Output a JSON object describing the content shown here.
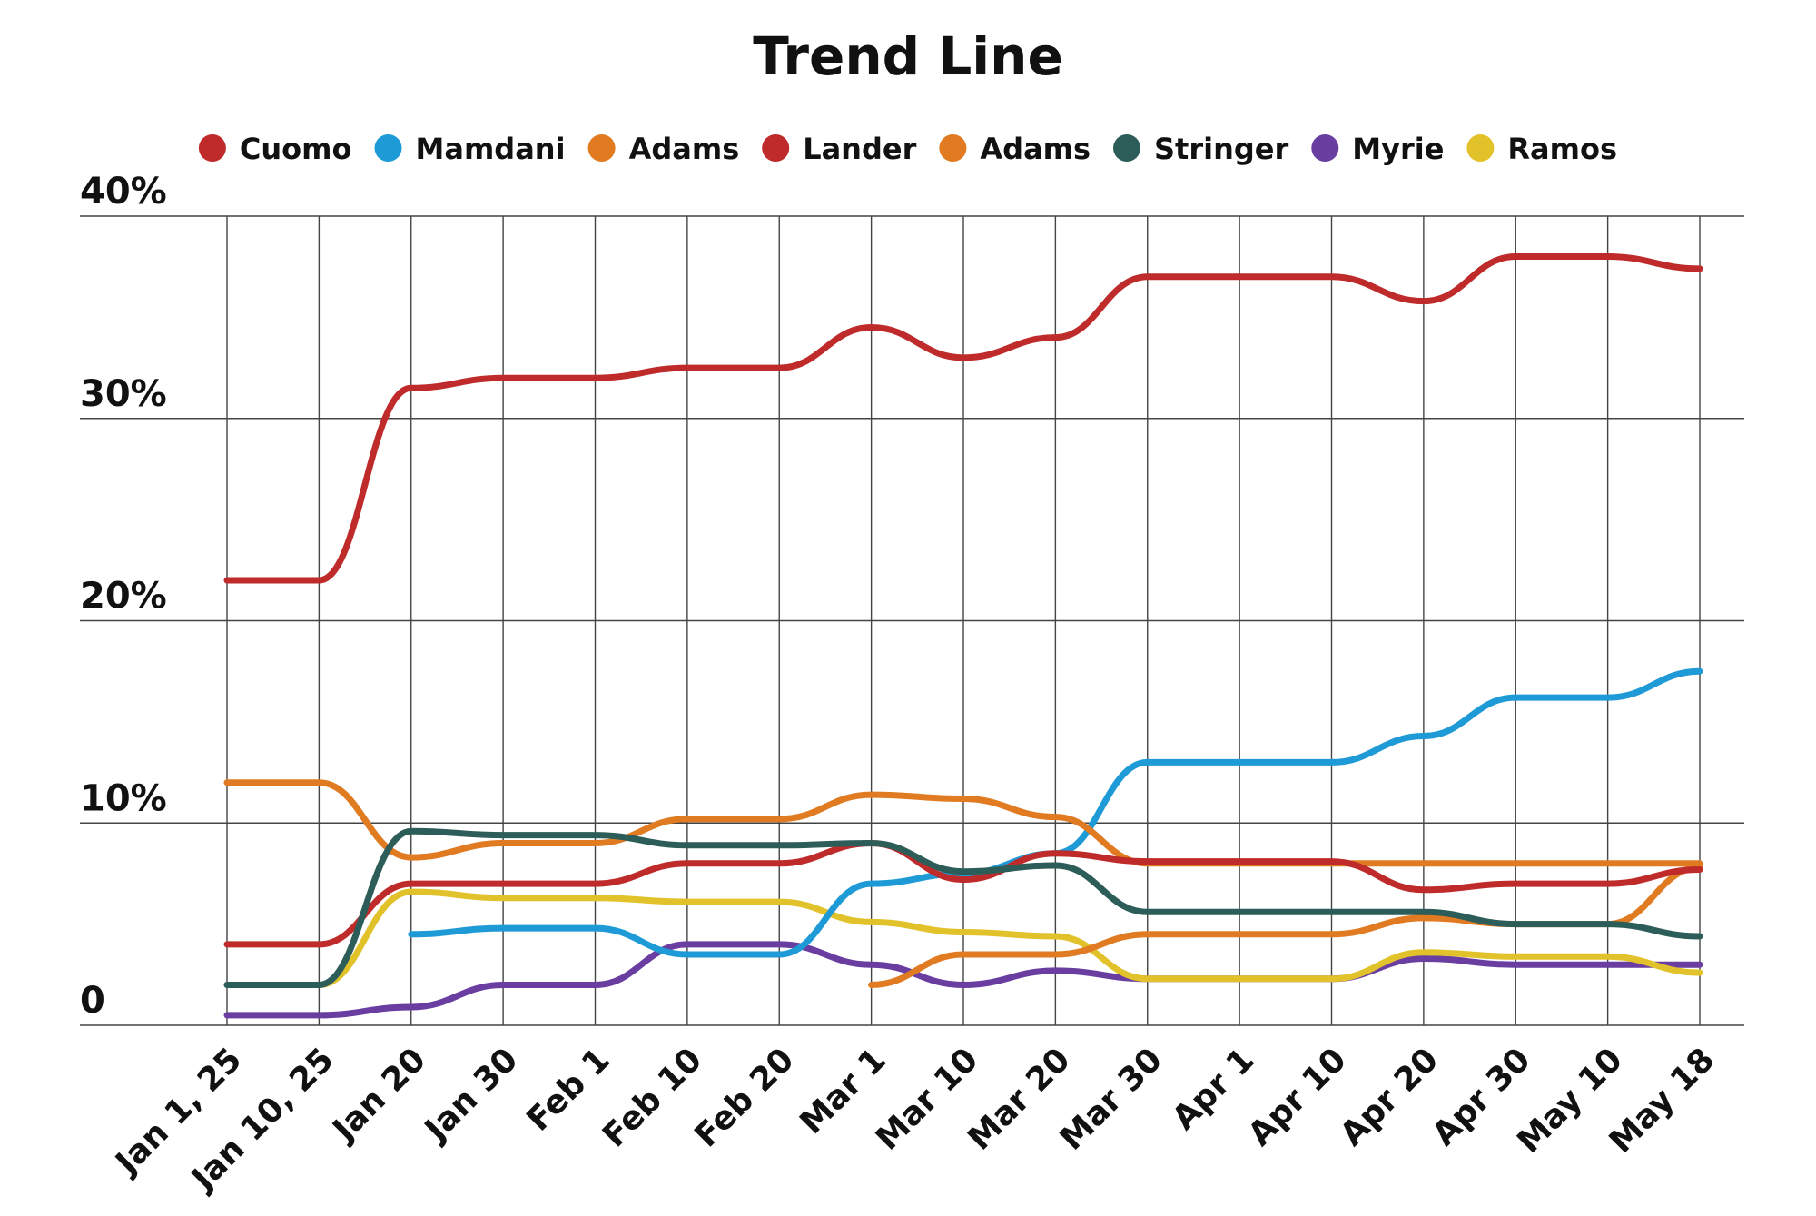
{
  "chart_data": {
    "type": "line",
    "title": "Trend Line",
    "xlabel": "",
    "ylabel": "",
    "ylim": [
      0,
      40
    ],
    "y_ticks": [
      {
        "value": 0,
        "label": "0"
      },
      {
        "value": 10,
        "label": "10%"
      },
      {
        "value": 20,
        "label": "20%"
      },
      {
        "value": 30,
        "label": "30%"
      },
      {
        "value": 40,
        "label": "40%"
      }
    ],
    "categories": [
      "Jan 1, 25",
      "Jan 10, 25",
      "Jan 20",
      "Jan 30",
      "Feb 1",
      "Feb 10",
      "Feb 20",
      "Mar 1",
      "Mar 10",
      "Mar 20",
      "Mar 30",
      "Apr 1",
      "Apr 10",
      "Apr 20",
      "Apr 30",
      "May 10",
      "May 18"
    ],
    "grid": true,
    "legend_position": "top",
    "series": [
      {
        "name": "Cuomo",
        "color": "#bf2a2a",
        "values": [
          22,
          22,
          31.5,
          32,
          32,
          32.5,
          32.5,
          34.5,
          33,
          34,
          37,
          37,
          37,
          35.8,
          38,
          38,
          37.4
        ]
      },
      {
        "name": "Mamdani",
        "color": "#1e9ad6",
        "values": [
          null,
          null,
          4.5,
          4.8,
          4.8,
          3.5,
          3.5,
          7,
          7.5,
          8.5,
          13,
          13,
          13,
          14.3,
          16.2,
          16.2,
          17.5
        ]
      },
      {
        "name": "Adams",
        "color": "#e07b22",
        "values": [
          12,
          12,
          8.3,
          9,
          9,
          10.2,
          10.2,
          11.4,
          11.2,
          10.3,
          8,
          8,
          8,
          8,
          8,
          8,
          8
        ]
      },
      {
        "name": "Lander",
        "color": "#bf2a2a",
        "values": [
          4,
          4,
          7,
          7,
          7,
          8,
          8,
          9,
          7.2,
          8.5,
          8.1,
          8.1,
          8.1,
          6.7,
          7,
          7,
          7.7
        ]
      },
      {
        "name": "Adams",
        "color": "#e07b22",
        "values": [
          null,
          null,
          null,
          null,
          null,
          null,
          null,
          2,
          3.5,
          3.5,
          4.5,
          4.5,
          4.5,
          5.3,
          5,
          5,
          7.8
        ]
      },
      {
        "name": "Stringer",
        "color": "#2d5d58",
        "values": [
          2,
          2,
          9.6,
          9.4,
          9.4,
          8.9,
          8.9,
          9,
          7.6,
          7.9,
          5.6,
          5.6,
          5.6,
          5.6,
          5,
          5,
          4.4
        ]
      },
      {
        "name": "Myrie",
        "color": "#6a3ea1",
        "values": [
          0.5,
          0.5,
          0.9,
          2,
          2,
          4,
          4,
          3,
          2,
          2.7,
          2.3,
          2.3,
          2.3,
          3.3,
          3,
          3,
          3
        ]
      },
      {
        "name": "Ramos",
        "color": "#e2c22b",
        "values": [
          2,
          2,
          6.6,
          6.3,
          6.3,
          6.1,
          6.1,
          5.1,
          4.6,
          4.4,
          2.3,
          2.3,
          2.3,
          3.6,
          3.4,
          3.4,
          2.6
        ]
      }
    ]
  }
}
